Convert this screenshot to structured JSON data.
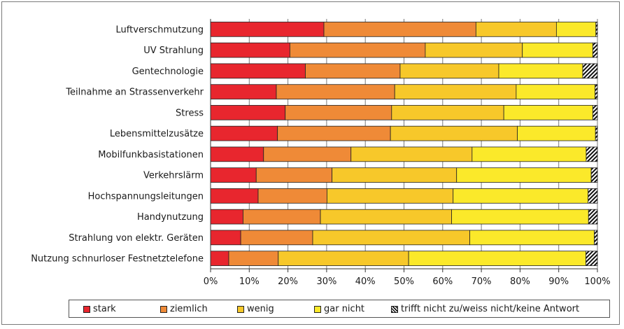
{
  "chart_data": {
    "type": "bar",
    "orientation": "horizontal",
    "stacked": true,
    "categories": [
      "Luftverschmutzung",
      "UV Strahlung",
      "Gentechnologie",
      "Teilnahme an Strassenverkehr",
      "Stress",
      "Lebensmittelzusätze",
      "Mobilfunkbasistationen",
      "Verkehrslärm",
      "Hochspannungsleitungen",
      "Handynutzung",
      "Strahlung von elektr. Geräten",
      "Nutzung schnurloser Festnetztelefone"
    ],
    "series": [
      {
        "name": "stark",
        "color": "#e8262e",
        "values": [
          29.3,
          20.5,
          24.5,
          17.0,
          19.3,
          17.3,
          13.7,
          11.8,
          12.3,
          8.4,
          7.8,
          4.7
        ]
      },
      {
        "name": "ziemlich",
        "color": "#ef8a37",
        "values": [
          39.3,
          35.0,
          24.5,
          30.6,
          27.5,
          29.2,
          22.6,
          19.6,
          17.8,
          20.0,
          18.6,
          12.8
        ]
      },
      {
        "name": "wenig",
        "color": "#f7c82a",
        "values": [
          20.8,
          25.1,
          25.5,
          31.4,
          29.0,
          32.8,
          31.3,
          32.2,
          32.6,
          33.9,
          40.6,
          33.7
        ]
      },
      {
        "name": "gar nicht",
        "color": "#fbe92a",
        "values": [
          10.2,
          18.2,
          21.7,
          20.4,
          23.0,
          20.2,
          29.5,
          34.8,
          34.9,
          35.4,
          32.2,
          45.8
        ]
      },
      {
        "name": "trifft nicht zu/weiss nicht/keine Antwort",
        "color": "hatch",
        "values": [
          0.4,
          1.2,
          3.8,
          0.6,
          1.2,
          0.5,
          2.9,
          1.6,
          2.4,
          2.3,
          0.8,
          3.0
        ]
      }
    ],
    "x_ticks": [
      "0%",
      "10%",
      "20%",
      "30%",
      "40%",
      "50%",
      "60%",
      "70%",
      "80%",
      "90%",
      "100%"
    ],
    "xlim": [
      0,
      100
    ],
    "grid": "vertical",
    "legend_position": "bottom"
  }
}
